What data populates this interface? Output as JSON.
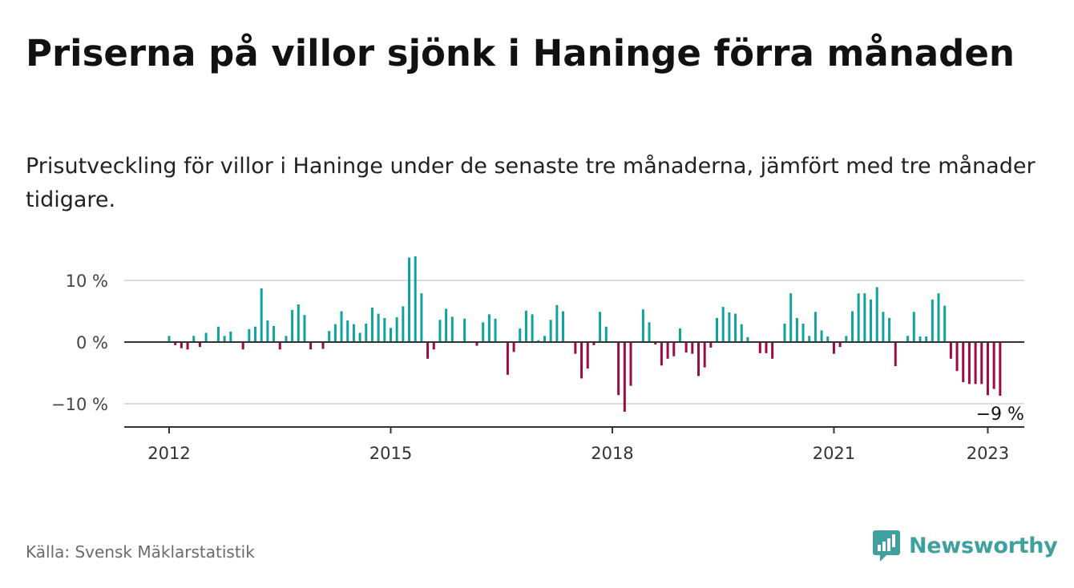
{
  "title": "Priserna på villor sjönk i Haninge förra månaden",
  "subtitle": "Prisutveckling för villor i Haninge under de senaste tre månaderna, jämfört med tre månader tidigare.",
  "source": "Källa: Svensk Mäklarstatistik",
  "brand": {
    "name": "Newsworthy",
    "icon": "newsworthy-logo-icon",
    "color": "#3fa0a0"
  },
  "colors": {
    "positive": "#12a29d",
    "negative": "#9c0b45",
    "zero_line": "#333333",
    "grid": "#dddddd"
  },
  "chart_data": {
    "type": "bar",
    "title": "",
    "xlabel": "",
    "ylabel": "",
    "ylim": [
      -13,
      14
    ],
    "x_start": "2012-01",
    "y_ticks": [
      {
        "value": 10,
        "label": "10 %"
      },
      {
        "value": 0,
        "label": "0 %"
      },
      {
        "value": -10,
        "label": "−10 %"
      }
    ],
    "x_ticks": [
      {
        "label": "2012",
        "month": "2012-01"
      },
      {
        "label": "2015",
        "month": "2015-01"
      },
      {
        "label": "2018",
        "month": "2018-01"
      },
      {
        "label": "2021",
        "month": "2021-01"
      },
      {
        "label": "2023",
        "month": "2023-02"
      }
    ],
    "last_value_label": "−9 %",
    "grid": true,
    "unit": "%",
    "values": [
      1,
      -0.5,
      -1,
      -1.2,
      1,
      -0.8,
      1.5,
      0,
      2.5,
      1,
      1.7,
      0,
      -1.2,
      2.1,
      2.5,
      8.7,
      3.5,
      2.6,
      -1.2,
      1,
      5.2,
      6.1,
      4.4,
      -1.2,
      0,
      -1.1,
      1.8,
      2.9,
      5,
      3.5,
      2.9,
      1.5,
      3,
      5.6,
      4.6,
      3.9,
      2.3,
      4,
      5.8,
      13.7,
      13.9,
      7.9,
      -2.7,
      -1.2,
      3.6,
      5.4,
      4.1,
      0,
      3.8,
      0,
      -0.6,
      3.2,
      4.5,
      3.8,
      0,
      -5.3,
      -1.6,
      2.2,
      5.1,
      4.5,
      0.3,
      1,
      3.6,
      6,
      5,
      0,
      -1.9,
      -5.9,
      -4.3,
      -0.5,
      4.9,
      2.5,
      0,
      -8.6,
      -11.3,
      -7.1,
      0,
      5.3,
      3.2,
      -0.4,
      -3.8,
      -2.7,
      -2.3,
      2.2,
      -1.7,
      -1.9,
      -5.5,
      -4.1,
      -0.9,
      3.9,
      5.7,
      4.8,
      4.6,
      2.9,
      0.8,
      0,
      -1.8,
      -1.8,
      -2.7,
      0,
      3,
      7.9,
      3.9,
      3,
      1,
      4.9,
      1.9,
      0.9,
      -1.9,
      -0.8,
      1,
      5,
      7.9,
      7.9,
      6.9,
      8.9,
      4.9,
      3.9,
      -3.9,
      0,
      1,
      4.9,
      0.9,
      0.9,
      6.9,
      7.9,
      5.9,
      -2.7,
      -4.7,
      -6.5,
      -6.8,
      -6.8,
      -6.8,
      -8.6,
      -7.6,
      -8.7
    ]
  }
}
